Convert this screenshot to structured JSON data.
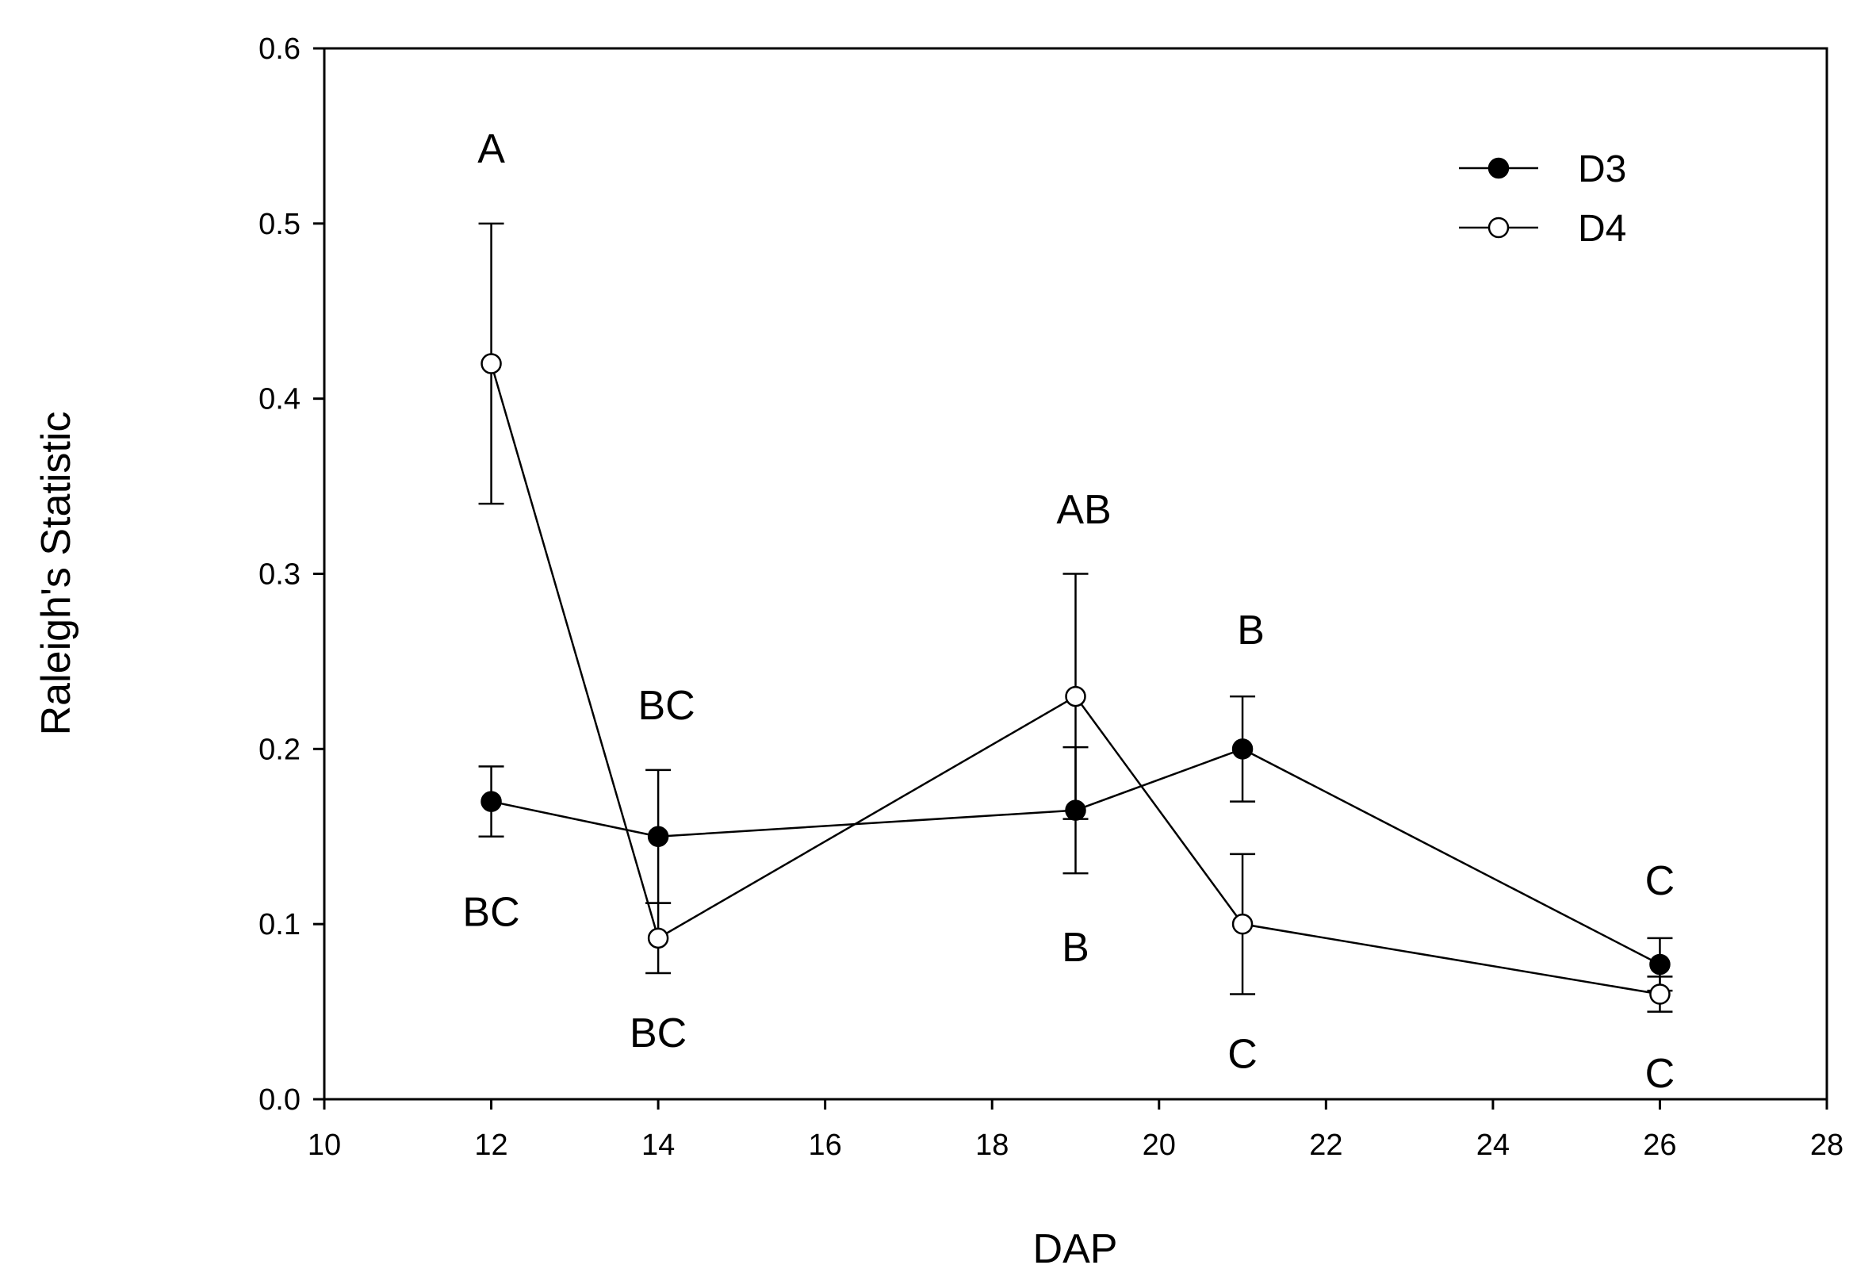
{
  "chart_data": {
    "type": "line",
    "title": "",
    "xlabel": "DAP",
    "ylabel": "Raleigh's Statistic",
    "xlim": [
      10,
      28
    ],
    "ylim": [
      0.0,
      0.6
    ],
    "xticks": [
      10,
      12,
      14,
      16,
      18,
      20,
      22,
      24,
      26,
      28
    ],
    "xtick_labels": [
      "10",
      "12",
      "14",
      "16",
      "18",
      "20",
      "22",
      "24",
      "26",
      "28"
    ],
    "yticks": [
      0.0,
      0.1,
      0.2,
      0.3,
      0.4,
      0.5,
      0.6
    ],
    "ytick_labels": [
      "0.0",
      "0.1",
      "0.2",
      "0.3",
      "0.4",
      "0.5",
      "0.6"
    ],
    "grid": false,
    "legend_position": "top-right",
    "series": [
      {
        "name": "D3",
        "marker": "filled-circle",
        "color": "#000000",
        "x": [
          12,
          14,
          19,
          21,
          26
        ],
        "y": [
          0.17,
          0.15,
          0.165,
          0.2,
          0.077
        ],
        "error": [
          0.02,
          0.038,
          0.036,
          0.03,
          0.015
        ]
      },
      {
        "name": "D4",
        "marker": "open-circle",
        "color": "#000000",
        "x": [
          12,
          14,
          19,
          21,
          26
        ],
        "y": [
          0.42,
          0.092,
          0.23,
          0.1,
          0.06
        ],
        "error": [
          0.08,
          0.02,
          0.07,
          0.04,
          0.01
        ]
      }
    ],
    "annotations": [
      {
        "text": "A",
        "x": 12,
        "y": 0.543
      },
      {
        "text": "BC",
        "x": 12,
        "y": 0.107
      },
      {
        "text": "BC",
        "x": 14.1,
        "y": 0.225
      },
      {
        "text": "BC",
        "x": 14,
        "y": 0.038
      },
      {
        "text": "AB",
        "x": 19.1,
        "y": 0.337
      },
      {
        "text": "B",
        "x": 19,
        "y": 0.087
      },
      {
        "text": "B",
        "x": 21.1,
        "y": 0.268
      },
      {
        "text": "C",
        "x": 21,
        "y": 0.026
      },
      {
        "text": "C",
        "x": 26,
        "y": 0.125
      },
      {
        "text": "C",
        "x": 26,
        "y": 0.015
      }
    ]
  }
}
